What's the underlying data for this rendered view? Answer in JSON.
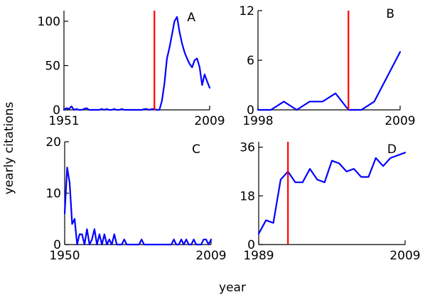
{
  "figure": {
    "xlabel": "year",
    "ylabel": "yearly citations",
    "colors": {
      "series": "#0000ff",
      "marker": "#ff0000",
      "axes": "#000000"
    }
  },
  "chart_data": [
    {
      "type": "line",
      "panel": "A",
      "xlim": [
        1951,
        2009
      ],
      "ylim": [
        0,
        112
      ],
      "xticks": [
        1951,
        2009
      ],
      "yticks": [
        0,
        50,
        100
      ],
      "marker_year": 1987,
      "series": [
        {
          "x": [
            1951,
            1952,
            1953,
            1954,
            1955,
            1956,
            1957,
            1958,
            1959,
            1960,
            1961,
            1962,
            1963,
            1964,
            1965,
            1966,
            1967,
            1968,
            1969,
            1970,
            1971,
            1972,
            1973,
            1974,
            1975,
            1976,
            1977,
            1978,
            1979,
            1980,
            1981,
            1982,
            1983,
            1984,
            1985,
            1986,
            1987,
            1988,
            1989,
            1990,
            1991,
            1992,
            1993,
            1994,
            1995,
            1996,
            1997,
            1998,
            1999,
            2000,
            2001,
            2002,
            2003,
            2004,
            2005,
            2006,
            2007,
            2008,
            2009
          ],
          "y": [
            0,
            2,
            1,
            4,
            0,
            1,
            0,
            0,
            1,
            2,
            0,
            0,
            0,
            0,
            0,
            1,
            0,
            1,
            0,
            0,
            1,
            0,
            0,
            1,
            0,
            0,
            0,
            0,
            0,
            0,
            0,
            0,
            1,
            1,
            0,
            1,
            1,
            0,
            0,
            10,
            30,
            58,
            70,
            85,
            100,
            105,
            88,
            75,
            65,
            58,
            52,
            48,
            56,
            58,
            48,
            28,
            40,
            32,
            25
          ]
        }
      ]
    },
    {
      "type": "line",
      "panel": "B",
      "xlim": [
        1998,
        2009
      ],
      "ylim": [
        0,
        12
      ],
      "xticks": [
        1998,
        2009
      ],
      "yticks": [
        0,
        6,
        12
      ],
      "marker_year": 2005,
      "series": [
        {
          "x": [
            1998,
            1999,
            2000,
            2001,
            2002,
            2003,
            2004,
            2005,
            2006,
            2007,
            2008,
            2009
          ],
          "y": [
            0,
            0,
            1,
            0,
            1,
            1,
            2,
            0,
            0,
            1,
            4,
            7
          ]
        }
      ]
    },
    {
      "type": "line",
      "panel": "C",
      "xlim": [
        1950,
        2009
      ],
      "ylim": [
        0,
        20
      ],
      "xticks": [
        1950,
        2009
      ],
      "yticks": [
        0,
        10,
        20
      ],
      "marker_year": null,
      "series": [
        {
          "x": [
            1950,
            1951,
            1952,
            1953,
            1954,
            1955,
            1956,
            1957,
            1958,
            1959,
            1960,
            1961,
            1962,
            1963,
            1964,
            1965,
            1966,
            1967,
            1968,
            1969,
            1970,
            1971,
            1972,
            1973,
            1974,
            1975,
            1976,
            1977,
            1978,
            1979,
            1980,
            1981,
            1982,
            1983,
            1984,
            1985,
            1986,
            1987,
            1988,
            1989,
            1990,
            1991,
            1992,
            1993,
            1994,
            1995,
            1996,
            1997,
            1998,
            1999,
            2000,
            2001,
            2002,
            2003,
            2004,
            2005,
            2006,
            2007,
            2008,
            2009
          ],
          "y": [
            6,
            15,
            12,
            4,
            5,
            0,
            2,
            2,
            0,
            3,
            0,
            1,
            3,
            0,
            2,
            0,
            2,
            0,
            1,
            0,
            2,
            0,
            0,
            0,
            1,
            0,
            0,
            0,
            0,
            0,
            0,
            1,
            0,
            0,
            0,
            0,
            0,
            0,
            0,
            0,
            0,
            0,
            0,
            0,
            1,
            0,
            0,
            1,
            0,
            1,
            0,
            0,
            1,
            0,
            0,
            0,
            1,
            1,
            0,
            1
          ]
        }
      ]
    },
    {
      "type": "line",
      "panel": "D",
      "xlim": [
        1989,
        2009
      ],
      "ylim": [
        0,
        38
      ],
      "xticks": [
        1989,
        2009
      ],
      "yticks": [
        0,
        18,
        36
      ],
      "marker_year": 1993,
      "series": [
        {
          "x": [
            1989,
            1990,
            1991,
            1992,
            1993,
            1994,
            1995,
            1996,
            1997,
            1998,
            1999,
            2000,
            2001,
            2002,
            2003,
            2004,
            2005,
            2006,
            2007,
            2008,
            2009
          ],
          "y": [
            4,
            9,
            8,
            24,
            27,
            23,
            23,
            28,
            24,
            23,
            31,
            30,
            27,
            28,
            25,
            25,
            32,
            29,
            32,
            33,
            34
          ]
        }
      ]
    }
  ]
}
